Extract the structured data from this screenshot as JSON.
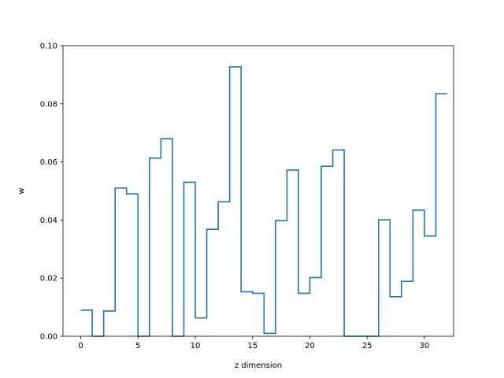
{
  "chart_data": {
    "type": "line",
    "step": "post",
    "title": "",
    "xlabel": "z dimension",
    "ylabel": "w",
    "xlim": [
      -1.55,
      32.55
    ],
    "ylim": [
      0,
      0.1
    ],
    "x_ticks": [
      0,
      5,
      10,
      15,
      20,
      25,
      30
    ],
    "y_ticks": [
      0.0,
      0.02,
      0.04,
      0.06,
      0.08,
      0.1
    ],
    "y_tick_labels": [
      "0.00",
      "0.02",
      "0.04",
      "0.06",
      "0.08",
      "0.10"
    ],
    "grid": false,
    "line_color": "#1f77b4",
    "series": [
      {
        "x": [
          0,
          1,
          2,
          3,
          4,
          5,
          6,
          7,
          8,
          9,
          10,
          11,
          12,
          13,
          14,
          15,
          16,
          17,
          18,
          19,
          20,
          21,
          22,
          23,
          24,
          25,
          26,
          27,
          28,
          29,
          30,
          31
        ],
        "values": [
          0.009,
          0.0,
          0.0087,
          0.051,
          0.049,
          0.0,
          0.0613,
          0.068,
          0.0,
          0.053,
          0.0063,
          0.0368,
          0.0463,
          0.0927,
          0.0153,
          0.0148,
          0.001,
          0.0398,
          0.0572,
          0.0148,
          0.0202,
          0.0585,
          0.0641,
          0.0,
          0.0,
          0.0,
          0.0401,
          0.0136,
          0.0189,
          0.0434,
          0.0345,
          0.0835
        ]
      }
    ]
  }
}
